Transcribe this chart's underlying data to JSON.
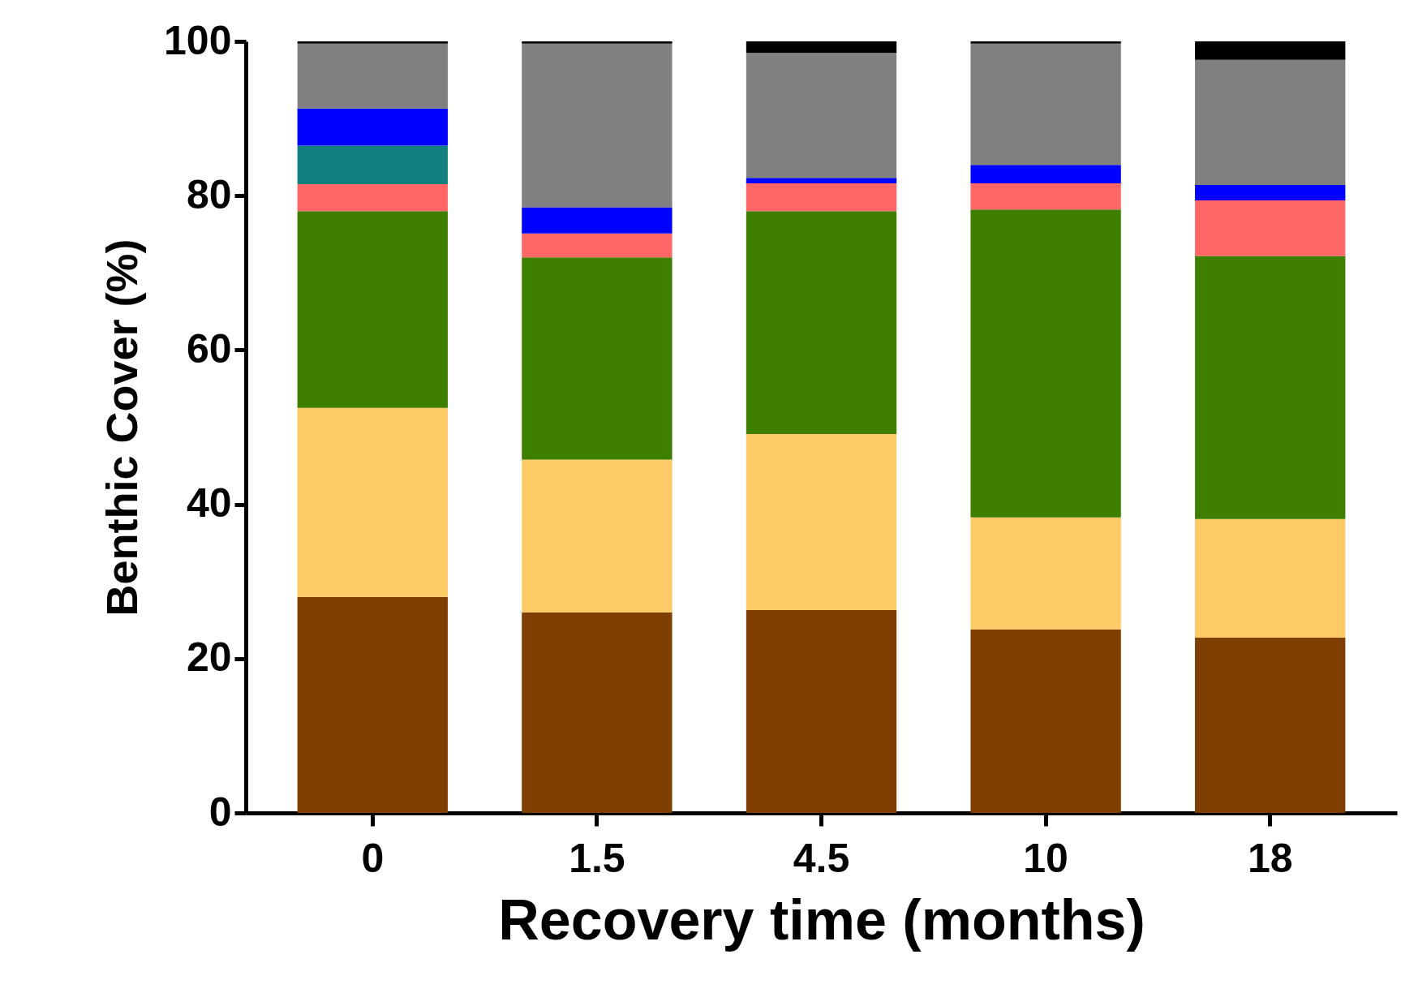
{
  "chart_data": {
    "type": "bar",
    "stacked": true,
    "xlabel": "Recovery time (months)",
    "ylabel": "Benthic Cover (%)",
    "categories": [
      "0",
      "1.5",
      "4.5",
      "10",
      "18"
    ],
    "series": [
      {
        "color": "#7f3f00",
        "values": [
          28,
          26,
          26.3,
          23.8,
          22.7
        ]
      },
      {
        "color": "#fdca66",
        "values": [
          24.5,
          19.8,
          22.8,
          14.5,
          15.4
        ]
      },
      {
        "color": "#3f7f00",
        "values": [
          25.5,
          26.2,
          28.9,
          39.9,
          34.1
        ]
      },
      {
        "color": "#ff6666",
        "values": [
          3.5,
          3.1,
          3.6,
          3.4,
          7.2
        ]
      },
      {
        "color": "#138080",
        "values": [
          5,
          0,
          0,
          0,
          0
        ]
      },
      {
        "color": "#0000ff",
        "values": [
          4.8,
          3.4,
          0.7,
          2.4,
          2.0
        ]
      },
      {
        "color": "#808080",
        "values": [
          8.4,
          21.2,
          16.2,
          15.7,
          16.2
        ]
      },
      {
        "color": "#000000",
        "values": [
          0.3,
          0.3,
          1.5,
          0.3,
          2.4
        ]
      }
    ],
    "ylim": [
      0,
      100
    ],
    "yticks": [
      0,
      20,
      40,
      60,
      80,
      100
    ],
    "grid": false,
    "legend": false
  }
}
